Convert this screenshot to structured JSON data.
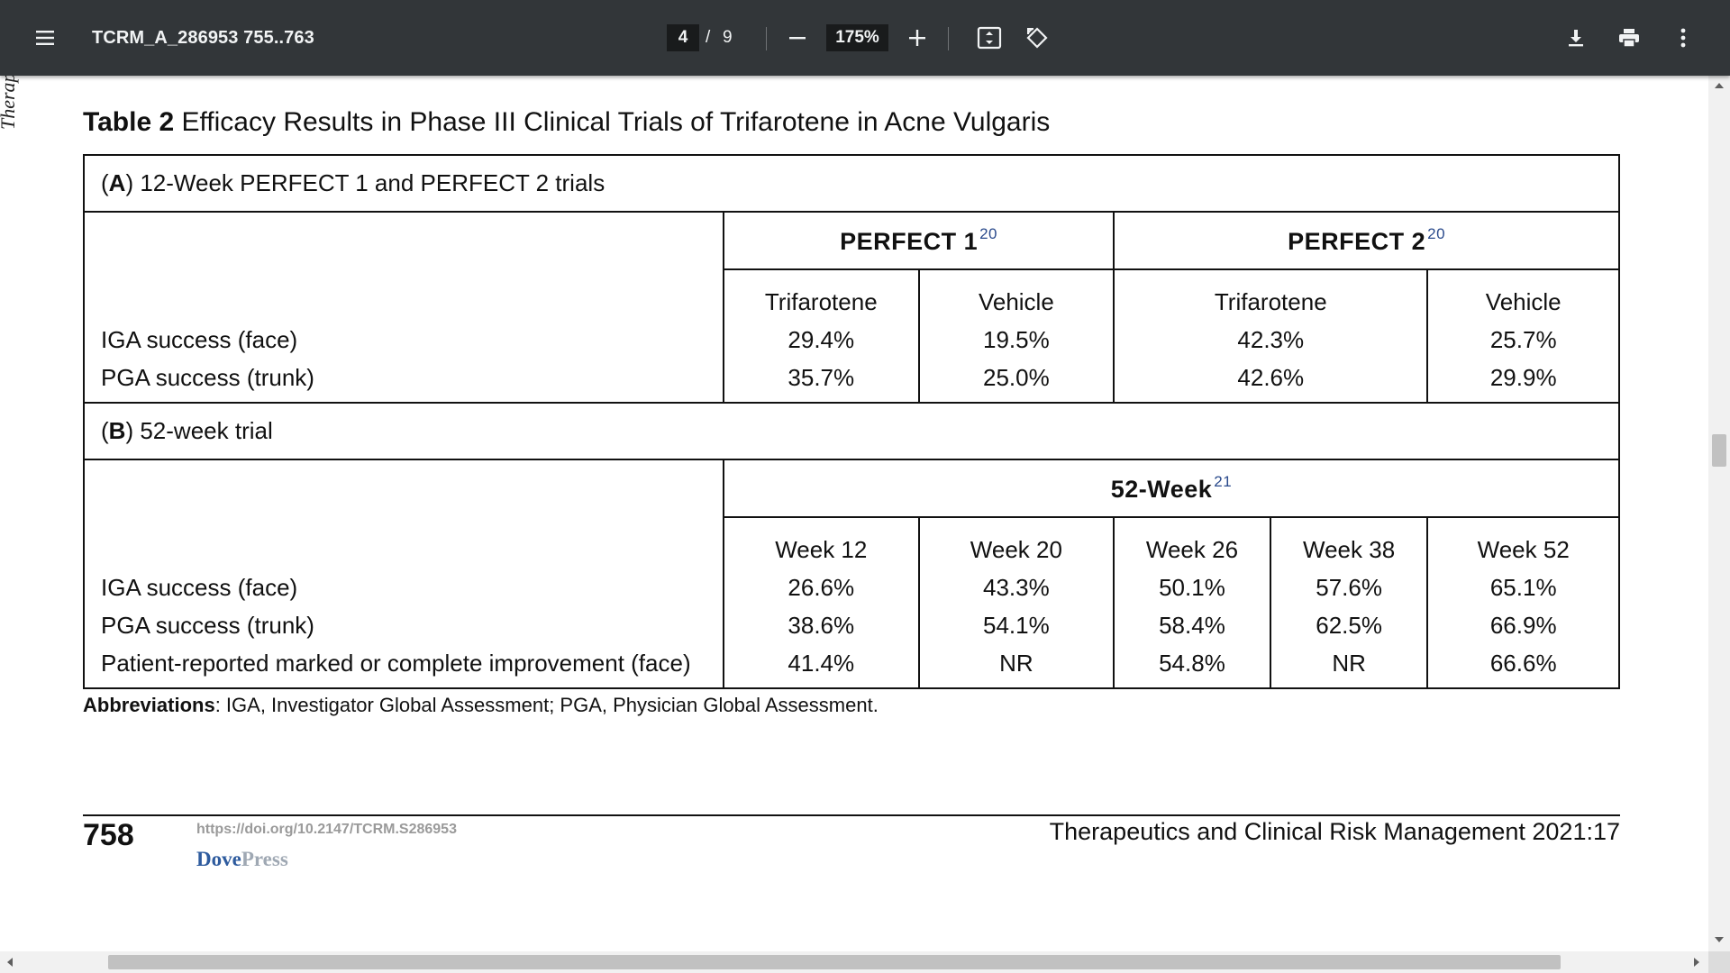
{
  "toolbar": {
    "doc_title": "TCRM_A_286953 755..763",
    "current_page": "4",
    "page_separator": "/",
    "total_pages": "9",
    "zoom": "175%",
    "icons": [
      "menu-icon",
      "zoom-out-icon",
      "zoom-in-icon",
      "fit-page-icon",
      "rotate-icon",
      "download-icon",
      "print-icon",
      "more-vert-icon"
    ],
    "background_color": "#323639"
  },
  "page": {
    "side_text": "Therapeu",
    "caption": {
      "label": "Table 2",
      "text": "Efficacy Results in Phase III Clinical Trials of Trifarotene in Acne Vulgaris"
    },
    "section_a": {
      "letter": "A",
      "title": "12-Week PERFECT 1 and PERFECT 2 trials",
      "groups": [
        {
          "name": "PERFECT 1",
          "ref": "20"
        },
        {
          "name": "PERFECT 2",
          "ref": "20"
        }
      ],
      "columns": [
        "Trifarotene",
        "Vehicle",
        "Trifarotene",
        "Vehicle"
      ],
      "rows": [
        {
          "label": "IGA success (face)",
          "values": [
            "29.4%",
            "19.5%",
            "42.3%",
            "25.7%"
          ]
        },
        {
          "label": "PGA success (trunk)",
          "values": [
            "35.7%",
            "25.0%",
            "42.6%",
            "29.9%"
          ]
        }
      ]
    },
    "section_b": {
      "letter": "B",
      "title": "52-week trial",
      "group": {
        "name": "52-Week",
        "ref": "21"
      },
      "columns": [
        "Week 12",
        "Week 20",
        "Week 26",
        "Week 38",
        "Week 52"
      ],
      "rows": [
        {
          "label": "IGA success (face)",
          "values": [
            "26.6%",
            "43.3%",
            "50.1%",
            "57.6%",
            "65.1%"
          ]
        },
        {
          "label": "PGA success (trunk)",
          "values": [
            "38.6%",
            "54.1%",
            "58.4%",
            "62.5%",
            "66.9%"
          ]
        },
        {
          "label": "Patient-reported marked or complete improvement (face)",
          "values": [
            "41.4%",
            "NR",
            "54.8%",
            "NR",
            "66.6%"
          ]
        }
      ]
    },
    "abbreviations": {
      "label": "Abbreviations",
      "text": ": IGA, Investigator Global Assessment; PGA, Physician Global Assessment."
    },
    "footer": {
      "page_number": "758",
      "doi": "https://doi.org/10.2147/TCRM.S286953",
      "publisher_a": "Dove",
      "publisher_b": "Press",
      "journal": "Therapeutics and Clinical Risk Management 2021:17"
    }
  }
}
